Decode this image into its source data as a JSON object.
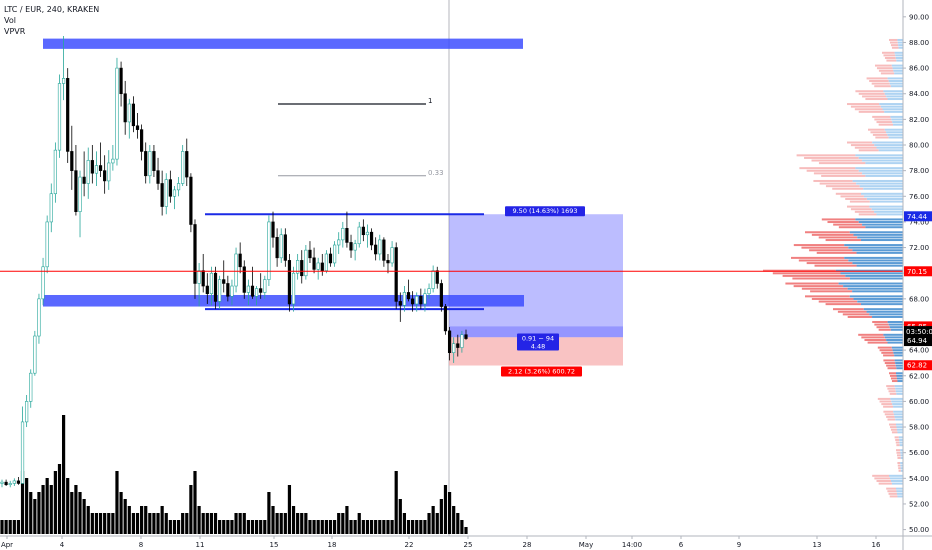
{
  "header": {
    "symbol": "LTC / EUR, 240, KRAKEN",
    "indicators": [
      "Vol",
      "VPVR"
    ]
  },
  "chart_data": {
    "type": "candlestick",
    "y_axis": {
      "range": [
        49.5,
        91
      ],
      "ticks": [
        50,
        52,
        54,
        56,
        58,
        60,
        62,
        64,
        66,
        68,
        70,
        72,
        74,
        76,
        78,
        80,
        82,
        84,
        86,
        88,
        90
      ],
      "tick_labels": [
        "50.00",
        "52.00",
        "54.00",
        "56.00",
        "58.00",
        "60.00",
        "62.00",
        "64.00",
        "66.00",
        "68.00",
        "70.00",
        "72.00",
        "74.00",
        "76.00",
        "78.00",
        "80.00",
        "82.00",
        "84.00",
        "86.00",
        "88.00",
        "90.00"
      ]
    },
    "x_axis": {
      "tick_labels": [
        "Apr",
        "4",
        "8",
        "11",
        "15",
        "18",
        "22",
        "25",
        "28",
        "May",
        "14:00",
        "6",
        "9",
        "13",
        "16"
      ]
    },
    "price_ticks": {
      "horizontal_line_level": 70.15,
      "last_price": 64.94,
      "countdown": "03:50:05",
      "upper_label": 74.44,
      "position_stop_label": 65.85,
      "position_low_label": 62.82
    },
    "price_colors": {
      "up": "#26a69a",
      "down": "#000000",
      "horizontal_line": "#ff0000",
      "zone_blue": "#3d4dff",
      "channel_blue": "#1a2ae6",
      "vpvr_up": "#5b9bd5",
      "vpvr_down": "#f08080"
    },
    "zones": [
      {
        "name": "top-zone",
        "y_low": 87.5,
        "y_high": 88.3
      },
      {
        "name": "support-zone",
        "y_low": 67.4,
        "y_high": 68.3
      }
    ],
    "channel": {
      "upper": 74.6,
      "lower": 67.2
    },
    "fib": [
      {
        "label": "1",
        "value": 83.2
      },
      {
        "label": "0.33",
        "value": 77.6
      }
    ],
    "position": {
      "entry": 65.0,
      "target": 74.6,
      "stop": 62.8,
      "target_label": "9.50 (14.63%) 1693",
      "center_label_top": "0.91 ~ 94",
      "center_label_bottom": "4.48",
      "stop_label": "2.12 (3.26%) 600.72"
    },
    "vpvr_rows": [
      {
        "price": 88.0,
        "total": 0.1,
        "up": 0.04
      },
      {
        "price": 87.0,
        "total": 0.15,
        "up": 0.06
      },
      {
        "price": 86.0,
        "total": 0.2,
        "up": 0.08
      },
      {
        "price": 85.0,
        "total": 0.26,
        "up": 0.11
      },
      {
        "price": 84.0,
        "total": 0.34,
        "up": 0.14
      },
      {
        "price": 83.0,
        "total": 0.4,
        "up": 0.17
      },
      {
        "price": 82.0,
        "total": 0.22,
        "up": 0.09
      },
      {
        "price": 81.0,
        "total": 0.25,
        "up": 0.13
      },
      {
        "price": 80.0,
        "total": 0.4,
        "up": 0.22
      },
      {
        "price": 79.0,
        "total": 0.76,
        "up": 0.34
      },
      {
        "price": 78.0,
        "total": 0.74,
        "up": 0.34
      },
      {
        "price": 77.0,
        "total": 0.64,
        "up": 0.36
      },
      {
        "price": 76.0,
        "total": 0.48,
        "up": 0.3
      },
      {
        "price": 75.0,
        "total": 0.4,
        "up": 0.24
      },
      {
        "price": 74.0,
        "total": 0.58,
        "up": 0.34
      },
      {
        "price": 73.0,
        "total": 0.7,
        "up": 0.38
      },
      {
        "price": 72.0,
        "total": 0.78,
        "up": 0.42
      },
      {
        "price": 71.0,
        "total": 0.8,
        "up": 0.42
      },
      {
        "price": 70.0,
        "total": 1.0,
        "up": 0.48
      },
      {
        "price": 69.0,
        "total": 0.84,
        "up": 0.46
      },
      {
        "price": 68.0,
        "total": 0.7,
        "up": 0.38
      },
      {
        "price": 67.0,
        "total": 0.5,
        "up": 0.28
      },
      {
        "price": 66.0,
        "total": 0.22,
        "up": 0.11
      },
      {
        "price": 65.0,
        "total": 0.32,
        "up": 0.14
      },
      {
        "price": 64.0,
        "total": 0.18,
        "up": 0.08
      },
      {
        "price": 63.0,
        "total": 0.14,
        "up": 0.06
      },
      {
        "price": 62.0,
        "total": 0.1,
        "up": 0.05
      },
      {
        "price": 61.0,
        "total": 0.12,
        "up": 0.06
      },
      {
        "price": 60.0,
        "total": 0.18,
        "up": 0.09
      },
      {
        "price": 59.0,
        "total": 0.14,
        "up": 0.07
      },
      {
        "price": 58.0,
        "total": 0.1,
        "up": 0.05
      },
      {
        "price": 57.0,
        "total": 0.06,
        "up": 0.03
      },
      {
        "price": 56.0,
        "total": 0.05,
        "up": 0.02
      },
      {
        "price": 55.0,
        "total": 0.04,
        "up": 0.02
      },
      {
        "price": 54.0,
        "total": 0.22,
        "up": 0.1
      },
      {
        "price": 53.0,
        "total": 0.12,
        "up": 0.05
      }
    ],
    "candles": [
      {
        "o": 53.6,
        "h": 53.9,
        "l": 53.3,
        "c": 53.7,
        "v": 0.1
      },
      {
        "o": 53.7,
        "h": 53.9,
        "l": 53.4,
        "c": 53.5,
        "v": 0.1
      },
      {
        "o": 53.5,
        "h": 53.8,
        "l": 53.3,
        "c": 53.6,
        "v": 0.1
      },
      {
        "o": 53.6,
        "h": 54.0,
        "l": 53.4,
        "c": 53.8,
        "v": 0.1
      },
      {
        "o": 53.8,
        "h": 54.1,
        "l": 53.5,
        "c": 53.6,
        "v": 0.1
      },
      {
        "o": 53.6,
        "h": 59.6,
        "l": 53.6,
        "c": 58.4,
        "v": 0.45
      },
      {
        "o": 58.4,
        "h": 60.5,
        "l": 58.0,
        "c": 60.0,
        "v": 0.4
      },
      {
        "o": 60.0,
        "h": 62.5,
        "l": 59.5,
        "c": 62.2,
        "v": 0.3
      },
      {
        "o": 62.2,
        "h": 65.5,
        "l": 62.0,
        "c": 65.1,
        "v": 0.25
      },
      {
        "o": 65.1,
        "h": 68.4,
        "l": 64.5,
        "c": 68.0,
        "v": 0.3
      },
      {
        "o": 68.0,
        "h": 71.2,
        "l": 67.5,
        "c": 70.5,
        "v": 0.35
      },
      {
        "o": 70.5,
        "h": 74.5,
        "l": 70.0,
        "c": 74.0,
        "v": 0.4
      },
      {
        "o": 74.0,
        "h": 77.0,
        "l": 73.2,
        "c": 76.2,
        "v": 0.35
      },
      {
        "o": 76.2,
        "h": 80.2,
        "l": 75.5,
        "c": 79.6,
        "v": 0.45
      },
      {
        "o": 79.6,
        "h": 85.5,
        "l": 79.0,
        "c": 84.8,
        "v": 0.5
      },
      {
        "o": 84.8,
        "h": 88.5,
        "l": 83.5,
        "c": 85.2,
        "v": 0.85
      },
      {
        "o": 85.2,
        "h": 86.0,
        "l": 78.6,
        "c": 79.5,
        "v": 0.4
      },
      {
        "o": 79.5,
        "h": 81.5,
        "l": 76.5,
        "c": 78.0,
        "v": 0.3
      },
      {
        "o": 78.0,
        "h": 80.0,
        "l": 74.5,
        "c": 74.8,
        "v": 0.35
      },
      {
        "o": 74.8,
        "h": 78.0,
        "l": 72.8,
        "c": 77.5,
        "v": 0.3
      },
      {
        "o": 77.5,
        "h": 79.5,
        "l": 76.0,
        "c": 77.0,
        "v": 0.25
      },
      {
        "o": 77.0,
        "h": 79.8,
        "l": 75.8,
        "c": 78.8,
        "v": 0.2
      },
      {
        "o": 78.8,
        "h": 80.0,
        "l": 77.0,
        "c": 77.8,
        "v": 0.15
      },
      {
        "o": 77.8,
        "h": 79.5,
        "l": 76.8,
        "c": 78.4,
        "v": 0.15
      },
      {
        "o": 78.4,
        "h": 80.2,
        "l": 77.5,
        "c": 78.0,
        "v": 0.15
      },
      {
        "o": 78.0,
        "h": 79.2,
        "l": 76.2,
        "c": 77.2,
        "v": 0.15
      },
      {
        "o": 77.2,
        "h": 79.6,
        "l": 76.5,
        "c": 78.6,
        "v": 0.15
      },
      {
        "o": 78.6,
        "h": 80.0,
        "l": 78.0,
        "c": 78.9,
        "v": 0.15
      },
      {
        "o": 78.9,
        "h": 86.8,
        "l": 78.4,
        "c": 86.0,
        "v": 0.45
      },
      {
        "o": 86.0,
        "h": 86.5,
        "l": 83.0,
        "c": 84.0,
        "v": 0.3
      },
      {
        "o": 84.0,
        "h": 85.0,
        "l": 80.8,
        "c": 81.8,
        "v": 0.25
      },
      {
        "o": 81.8,
        "h": 83.6,
        "l": 80.5,
        "c": 83.2,
        "v": 0.2
      },
      {
        "o": 83.2,
        "h": 83.8,
        "l": 81.0,
        "c": 81.5,
        "v": 0.15
      },
      {
        "o": 81.5,
        "h": 82.5,
        "l": 80.5,
        "c": 81.2,
        "v": 0.15
      },
      {
        "o": 81.2,
        "h": 81.6,
        "l": 78.8,
        "c": 79.5,
        "v": 0.2
      },
      {
        "o": 79.5,
        "h": 80.2,
        "l": 77.0,
        "c": 77.6,
        "v": 0.2
      },
      {
        "o": 77.6,
        "h": 80.0,
        "l": 77.0,
        "c": 79.5,
        "v": 0.15
      },
      {
        "o": 79.5,
        "h": 80.0,
        "l": 77.5,
        "c": 78.0,
        "v": 0.15
      },
      {
        "o": 78.0,
        "h": 79.0,
        "l": 76.5,
        "c": 77.0,
        "v": 0.15
      },
      {
        "o": 77.0,
        "h": 78.0,
        "l": 74.5,
        "c": 75.2,
        "v": 0.2
      },
      {
        "o": 75.2,
        "h": 77.8,
        "l": 74.6,
        "c": 77.3,
        "v": 0.15
      },
      {
        "o": 77.3,
        "h": 78.0,
        "l": 75.5,
        "c": 76.0,
        "v": 0.1
      },
      {
        "o": 76.0,
        "h": 76.8,
        "l": 75.0,
        "c": 76.5,
        "v": 0.1
      },
      {
        "o": 76.5,
        "h": 77.5,
        "l": 76.0,
        "c": 77.0,
        "v": 0.1
      },
      {
        "o": 77.0,
        "h": 80.0,
        "l": 76.8,
        "c": 79.5,
        "v": 0.15
      },
      {
        "o": 79.5,
        "h": 80.5,
        "l": 76.8,
        "c": 77.5,
        "v": 0.15
      },
      {
        "o": 77.5,
        "h": 77.8,
        "l": 73.2,
        "c": 73.8,
        "v": 0.35
      },
      {
        "o": 73.8,
        "h": 74.2,
        "l": 68.0,
        "c": 69.2,
        "v": 0.45
      },
      {
        "o": 69.2,
        "h": 70.8,
        "l": 67.4,
        "c": 70.2,
        "v": 0.2
      },
      {
        "o": 70.2,
        "h": 71.5,
        "l": 68.5,
        "c": 69.0,
        "v": 0.15
      },
      {
        "o": 69.0,
        "h": 70.0,
        "l": 67.6,
        "c": 68.4,
        "v": 0.15
      },
      {
        "o": 68.4,
        "h": 70.5,
        "l": 67.5,
        "c": 70.0,
        "v": 0.15
      },
      {
        "o": 70.0,
        "h": 70.5,
        "l": 67.2,
        "c": 67.8,
        "v": 0.15
      },
      {
        "o": 67.8,
        "h": 69.8,
        "l": 67.2,
        "c": 69.5,
        "v": 0.1
      },
      {
        "o": 69.5,
        "h": 71.0,
        "l": 68.5,
        "c": 69.2,
        "v": 0.1
      },
      {
        "o": 69.2,
        "h": 69.8,
        "l": 67.8,
        "c": 68.2,
        "v": 0.1
      },
      {
        "o": 68.2,
        "h": 69.5,
        "l": 67.5,
        "c": 69.0,
        "v": 0.1
      },
      {
        "o": 69.0,
        "h": 72.0,
        "l": 68.5,
        "c": 71.5,
        "v": 0.15
      },
      {
        "o": 71.5,
        "h": 72.4,
        "l": 70.0,
        "c": 70.5,
        "v": 0.15
      },
      {
        "o": 70.5,
        "h": 71.0,
        "l": 68.0,
        "c": 68.5,
        "v": 0.15
      },
      {
        "o": 68.5,
        "h": 69.5,
        "l": 67.5,
        "c": 69.0,
        "v": 0.1
      },
      {
        "o": 69.0,
        "h": 70.5,
        "l": 68.0,
        "c": 68.2,
        "v": 0.1
      },
      {
        "o": 68.2,
        "h": 69.0,
        "l": 67.5,
        "c": 68.8,
        "v": 0.1
      },
      {
        "o": 68.8,
        "h": 70.0,
        "l": 68.0,
        "c": 68.5,
        "v": 0.1
      },
      {
        "o": 68.5,
        "h": 69.8,
        "l": 68.0,
        "c": 69.5,
        "v": 0.1
      },
      {
        "o": 69.5,
        "h": 74.5,
        "l": 69.0,
        "c": 74.0,
        "v": 0.3
      },
      {
        "o": 74.0,
        "h": 74.8,
        "l": 72.0,
        "c": 72.8,
        "v": 0.2
      },
      {
        "o": 72.8,
        "h": 73.5,
        "l": 70.5,
        "c": 71.2,
        "v": 0.15
      },
      {
        "o": 71.2,
        "h": 73.5,
        "l": 70.8,
        "c": 73.0,
        "v": 0.15
      },
      {
        "o": 73.0,
        "h": 73.5,
        "l": 70.5,
        "c": 71.0,
        "v": 0.15
      },
      {
        "o": 71.0,
        "h": 71.5,
        "l": 67.0,
        "c": 67.6,
        "v": 0.35
      },
      {
        "o": 67.6,
        "h": 70.5,
        "l": 67.0,
        "c": 70.0,
        "v": 0.2
      },
      {
        "o": 70.0,
        "h": 71.5,
        "l": 69.5,
        "c": 71.0,
        "v": 0.15
      },
      {
        "o": 71.0,
        "h": 71.8,
        "l": 69.2,
        "c": 69.8,
        "v": 0.15
      },
      {
        "o": 69.8,
        "h": 72.2,
        "l": 69.5,
        "c": 71.8,
        "v": 0.15
      },
      {
        "o": 71.8,
        "h": 72.5,
        "l": 70.8,
        "c": 71.2,
        "v": 0.1
      },
      {
        "o": 71.2,
        "h": 72.0,
        "l": 70.0,
        "c": 70.3,
        "v": 0.1
      },
      {
        "o": 70.3,
        "h": 71.2,
        "l": 69.5,
        "c": 70.8,
        "v": 0.1
      },
      {
        "o": 70.8,
        "h": 71.5,
        "l": 69.8,
        "c": 70.2,
        "v": 0.1
      },
      {
        "o": 70.2,
        "h": 71.8,
        "l": 70.0,
        "c": 71.5,
        "v": 0.1
      },
      {
        "o": 71.5,
        "h": 72.0,
        "l": 70.5,
        "c": 70.8,
        "v": 0.1
      },
      {
        "o": 70.8,
        "h": 72.5,
        "l": 70.5,
        "c": 72.2,
        "v": 0.1
      },
      {
        "o": 72.2,
        "h": 73.2,
        "l": 71.5,
        "c": 72.6,
        "v": 0.15
      },
      {
        "o": 72.6,
        "h": 74.0,
        "l": 72.0,
        "c": 73.5,
        "v": 0.15
      },
      {
        "o": 73.5,
        "h": 74.8,
        "l": 72.0,
        "c": 72.4,
        "v": 0.2
      },
      {
        "o": 72.4,
        "h": 73.0,
        "l": 71.2,
        "c": 71.8,
        "v": 0.1
      },
      {
        "o": 71.8,
        "h": 72.6,
        "l": 71.0,
        "c": 72.3,
        "v": 0.1
      },
      {
        "o": 72.3,
        "h": 74.0,
        "l": 72.0,
        "c": 73.6,
        "v": 0.15
      },
      {
        "o": 73.6,
        "h": 74.2,
        "l": 72.5,
        "c": 73.0,
        "v": 0.1
      },
      {
        "o": 73.0,
        "h": 73.8,
        "l": 72.0,
        "c": 73.2,
        "v": 0.1
      },
      {
        "o": 73.2,
        "h": 73.5,
        "l": 71.8,
        "c": 72.2,
        "v": 0.1
      },
      {
        "o": 72.2,
        "h": 72.8,
        "l": 71.0,
        "c": 71.5,
        "v": 0.1
      },
      {
        "o": 71.5,
        "h": 73.0,
        "l": 71.0,
        "c": 72.6,
        "v": 0.1
      },
      {
        "o": 72.6,
        "h": 72.8,
        "l": 70.5,
        "c": 71.0,
        "v": 0.1
      },
      {
        "o": 71.0,
        "h": 71.5,
        "l": 70.0,
        "c": 70.8,
        "v": 0.1
      },
      {
        "o": 70.8,
        "h": 72.5,
        "l": 70.5,
        "c": 72.0,
        "v": 0.1
      },
      {
        "o": 72.0,
        "h": 72.4,
        "l": 67.2,
        "c": 67.8,
        "v": 0.45
      },
      {
        "o": 67.8,
        "h": 68.5,
        "l": 66.2,
        "c": 67.5,
        "v": 0.25
      },
      {
        "o": 67.5,
        "h": 69.0,
        "l": 67.0,
        "c": 68.5,
        "v": 0.15
      },
      {
        "o": 68.5,
        "h": 69.5,
        "l": 67.8,
        "c": 68.0,
        "v": 0.1
      },
      {
        "o": 68.0,
        "h": 68.6,
        "l": 67.0,
        "c": 67.6,
        "v": 0.1
      },
      {
        "o": 67.6,
        "h": 68.5,
        "l": 67.0,
        "c": 68.2,
        "v": 0.1
      },
      {
        "o": 68.2,
        "h": 68.8,
        "l": 67.2,
        "c": 67.6,
        "v": 0.1
      },
      {
        "o": 67.6,
        "h": 68.8,
        "l": 67.0,
        "c": 68.4,
        "v": 0.1
      },
      {
        "o": 68.4,
        "h": 69.2,
        "l": 68.0,
        "c": 68.8,
        "v": 0.15
      },
      {
        "o": 68.8,
        "h": 70.6,
        "l": 68.5,
        "c": 70.2,
        "v": 0.2
      },
      {
        "o": 70.2,
        "h": 70.5,
        "l": 68.8,
        "c": 69.2,
        "v": 0.15
      },
      {
        "o": 69.2,
        "h": 69.5,
        "l": 67.0,
        "c": 67.4,
        "v": 0.25
      },
      {
        "o": 67.4,
        "h": 67.6,
        "l": 65.2,
        "c": 65.5,
        "v": 0.35
      },
      {
        "o": 65.5,
        "h": 65.8,
        "l": 63.2,
        "c": 63.8,
        "v": 0.3
      },
      {
        "o": 63.8,
        "h": 65.0,
        "l": 63.0,
        "c": 64.5,
        "v": 0.2
      },
      {
        "o": 64.5,
        "h": 65.2,
        "l": 63.5,
        "c": 64.2,
        "v": 0.15
      },
      {
        "o": 64.2,
        "h": 65.5,
        "l": 63.8,
        "c": 65.2,
        "v": 0.1
      },
      {
        "o": 65.2,
        "h": 65.6,
        "l": 64.8,
        "c": 64.9,
        "v": 0.05
      }
    ]
  }
}
